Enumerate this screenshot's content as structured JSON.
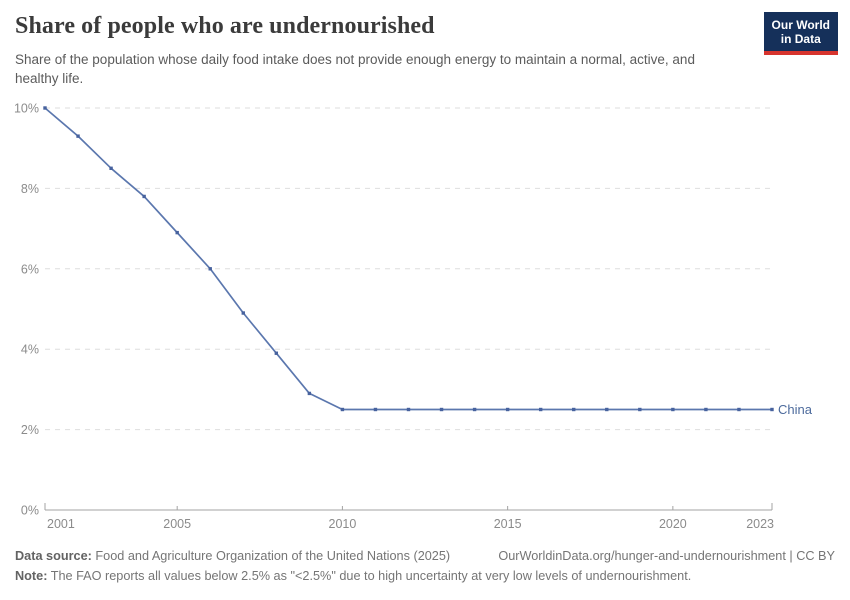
{
  "header": {
    "title": "Share of people who are undernourished",
    "subtitle": "Share of the population whose daily food intake does not provide enough energy to maintain a normal, active, and healthy life.",
    "logo": {
      "line1": "Our World",
      "line2": "in Data"
    }
  },
  "chart_data": {
    "type": "line",
    "title": "Share of people who are undernourished",
    "x": [
      2001,
      2002,
      2003,
      2004,
      2005,
      2006,
      2007,
      2008,
      2009,
      2010,
      2011,
      2012,
      2013,
      2014,
      2015,
      2016,
      2017,
      2018,
      2019,
      2020,
      2021,
      2022,
      2023
    ],
    "series": [
      {
        "name": "China",
        "values": [
          10.0,
          9.3,
          8.5,
          7.8,
          6.9,
          6.0,
          4.9,
          3.9,
          2.9,
          2.5,
          2.5,
          2.5,
          2.5,
          2.5,
          2.5,
          2.5,
          2.5,
          2.5,
          2.5,
          2.5,
          2.5,
          2.5,
          2.5
        ]
      }
    ],
    "unit": "%",
    "xlabel": "",
    "ylabel": "",
    "xlim": [
      2001,
      2023
    ],
    "ylim": [
      0,
      10
    ],
    "xticks": [
      2001,
      2005,
      2010,
      2015,
      2020,
      2023
    ],
    "yticks": [
      0,
      2,
      4,
      6,
      8,
      10
    ],
    "ytick_suffix": "%",
    "grid": "horizontal-dashed",
    "legend_position": "end-of-line",
    "colors": {
      "line": "#5b77ae",
      "marker": "#47629e",
      "series_label": "#4c6a9c",
      "gridline": "#dedede",
      "axis": "#a3a3a3",
      "tick_label": "#8b8b8b"
    }
  },
  "footer": {
    "data_source_label": "Data source:",
    "data_source_text": " Food and Agriculture Organization of the United Nations (2025)",
    "citation": "OurWorldinData.org/hunger-and-undernourishment | CC BY",
    "note_label": "Note:",
    "note_text": " The FAO reports all values below 2.5% as \"<2.5%\" due to high uncertainty at very low levels of undernourishment."
  }
}
